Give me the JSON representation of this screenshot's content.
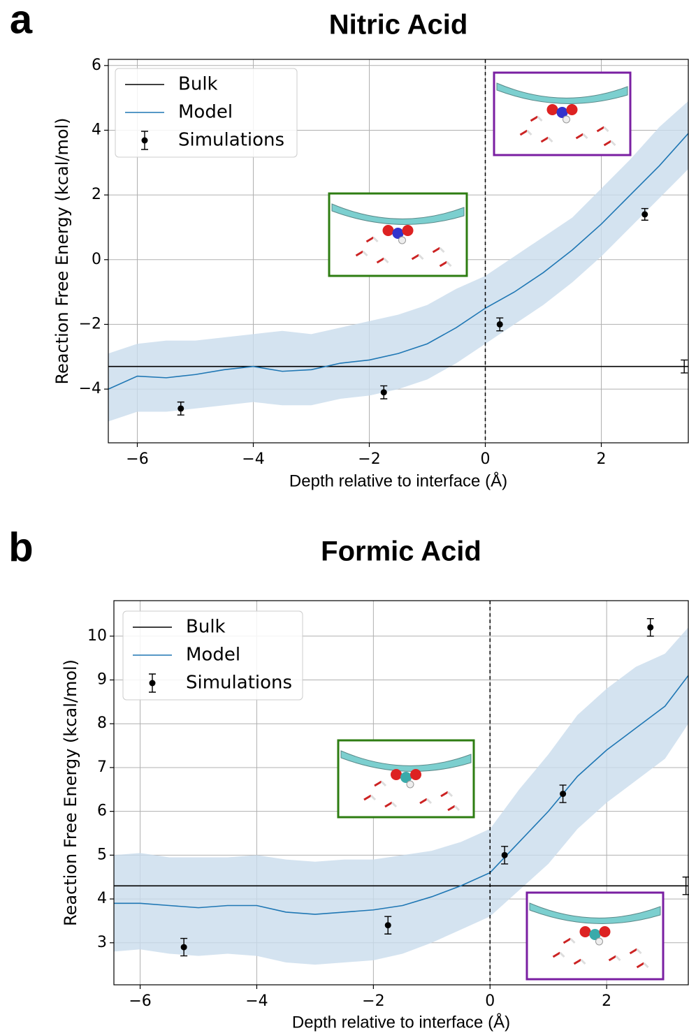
{
  "chart_data": [
    {
      "type": "line",
      "panel": "a",
      "title": "Nitric Acid",
      "xlabel": "Depth relative to interface (Å)",
      "ylabel": "Reaction Free Energy (kcal/mol)",
      "xlim": [
        -6.5,
        3.5
      ],
      "ylim": [
        -5.66,
        6.19
      ],
      "xticks": [
        {
          "value": -6,
          "label": "−6"
        },
        {
          "value": -4,
          "label": "−4"
        },
        {
          "value": -2,
          "label": "−2"
        },
        0,
        2
      ],
      "yticks": [
        {
          "value": -4,
          "label": "−4"
        },
        {
          "value": -2,
          "label": "−2"
        },
        0,
        2,
        4,
        6
      ],
      "grid": true,
      "vline": 0,
      "legend": "upper left",
      "bulk": {
        "name": "Bulk",
        "color": "#000000",
        "value": -3.3,
        "x": 3.43,
        "error": 0.2
      },
      "model": {
        "name": "Model",
        "color": "#1f77b4",
        "band_color": "#c9dcec",
        "x": [
          -6.5,
          -6,
          -5.5,
          -5,
          -4.5,
          -4,
          -3.5,
          -3,
          -2.5,
          -2,
          -1.5,
          -1,
          -0.5,
          0,
          0.5,
          1,
          1.5,
          2,
          2.5,
          3,
          3.5
        ],
        "values": [
          -4.0,
          -3.6,
          -3.65,
          -3.55,
          -3.4,
          -3.3,
          -3.45,
          -3.4,
          -3.2,
          -3.1,
          -2.9,
          -2.6,
          -2.1,
          -1.5,
          -1.0,
          -0.4,
          0.3,
          1.1,
          2.0,
          2.9,
          3.9
        ],
        "upper": [
          -2.9,
          -2.6,
          -2.5,
          -2.5,
          -2.4,
          -2.3,
          -2.2,
          -2.3,
          -2.1,
          -1.9,
          -1.7,
          -1.4,
          -0.9,
          -0.5,
          0.1,
          0.7,
          1.3,
          2.2,
          3.1,
          4.1,
          4.9
        ],
        "lower": [
          -5.0,
          -4.7,
          -4.7,
          -4.6,
          -4.5,
          -4.4,
          -4.5,
          -4.5,
          -4.3,
          -4.2,
          -4.0,
          -3.7,
          -3.2,
          -2.6,
          -2.0,
          -1.4,
          -0.7,
          0.1,
          1.0,
          1.9,
          2.8
        ]
      },
      "simulations": {
        "name": "Simulations",
        "color": "#000000",
        "x": [
          -5.25,
          -1.75,
          0.25,
          2.75
        ],
        "values": [
          -4.6,
          -4.1,
          -2.0,
          1.4
        ],
        "errors": [
          0.2,
          0.2,
          0.2,
          0.18
        ]
      }
    },
    {
      "type": "line",
      "panel": "b",
      "title": "Formic Acid",
      "xlabel": "Depth relative to interface (Å)",
      "ylabel": "Reaction Free Energy (kcal/mol)",
      "xlim": [
        -6.45,
        3.4
      ],
      "ylim": [
        2.04,
        10.81
      ],
      "xticks": [
        {
          "value": -6,
          "label": "−6"
        },
        {
          "value": -4,
          "label": "−4"
        },
        {
          "value": -2,
          "label": "−2"
        },
        0,
        2
      ],
      "yticks": [
        3,
        4,
        5,
        6,
        7,
        8,
        9,
        10
      ],
      "grid": true,
      "vline": 0,
      "legend": "upper left",
      "bulk": {
        "name": "Bulk",
        "color": "#000000",
        "value": 4.3,
        "x": 3.36,
        "error": 0.2
      },
      "model": {
        "name": "Model",
        "color": "#1f77b4",
        "band_color": "#c9dcec",
        "x": [
          -6.45,
          -6,
          -5.5,
          -5,
          -4.5,
          -4,
          -3.5,
          -3,
          -2.5,
          -2,
          -1.5,
          -1,
          -0.5,
          0,
          0.5,
          1,
          1.5,
          2,
          2.5,
          3,
          3.4
        ],
        "values": [
          3.9,
          3.9,
          3.85,
          3.8,
          3.85,
          3.85,
          3.7,
          3.65,
          3.7,
          3.75,
          3.85,
          4.05,
          4.3,
          4.6,
          5.3,
          6.0,
          6.8,
          7.4,
          7.9,
          8.4,
          9.1
        ],
        "upper": [
          5.0,
          5.05,
          4.95,
          4.95,
          4.95,
          5.0,
          4.9,
          4.85,
          4.9,
          4.9,
          5.0,
          5.1,
          5.3,
          5.6,
          6.5,
          7.3,
          8.2,
          8.8,
          9.3,
          9.6,
          10.2
        ],
        "lower": [
          2.8,
          2.85,
          2.75,
          2.7,
          2.75,
          2.7,
          2.55,
          2.5,
          2.55,
          2.6,
          2.75,
          3.0,
          3.3,
          3.6,
          4.2,
          4.8,
          5.6,
          6.2,
          6.7,
          7.2,
          8.0
        ]
      },
      "simulations": {
        "name": "Simulations",
        "color": "#000000",
        "x": [
          -5.25,
          -1.75,
          0.25,
          1.25,
          2.75
        ],
        "values": [
          2.9,
          3.4,
          5.0,
          6.4,
          10.2
        ],
        "errors": [
          0.2,
          0.2,
          0.2,
          0.2,
          0.2
        ]
      }
    }
  ]
}
